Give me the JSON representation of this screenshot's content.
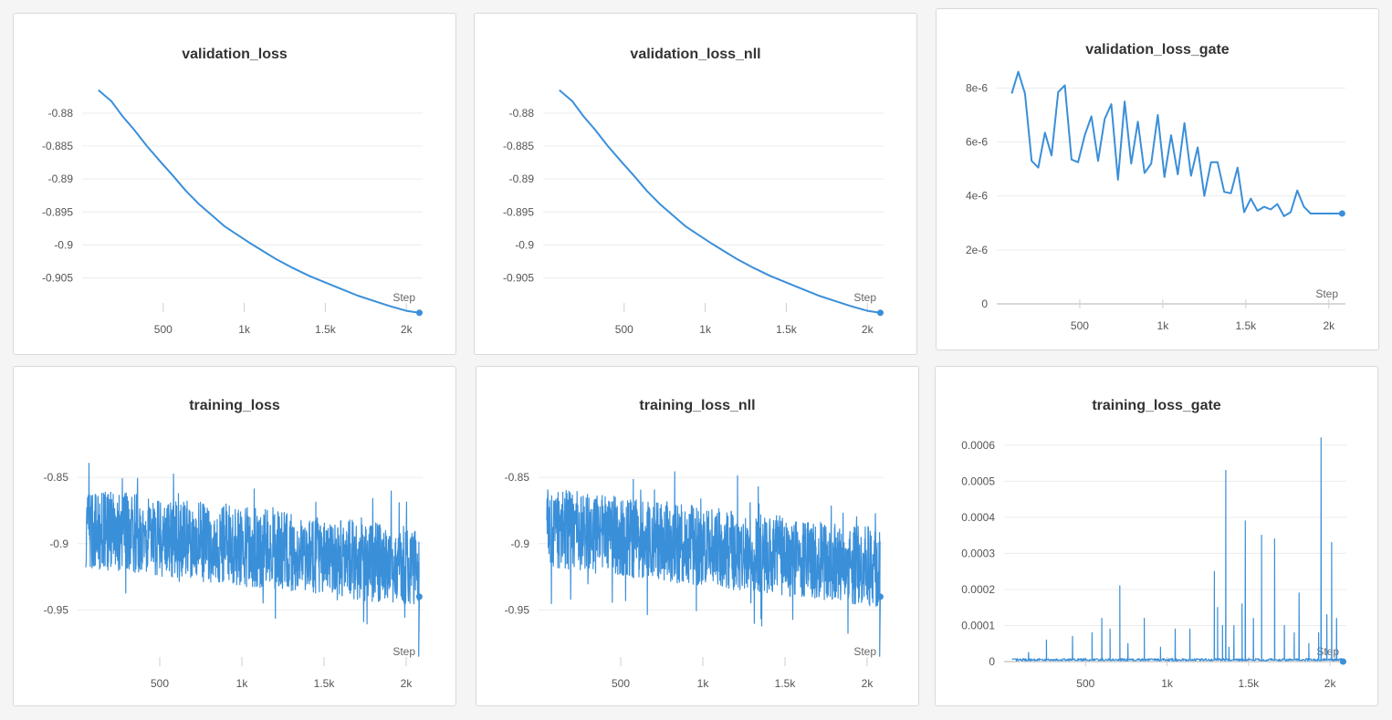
{
  "accent_color": "#3a8fd9",
  "x_axis_label": "Step",
  "charts": [
    {
      "title": "validation_loss",
      "chart_data": {
        "type": "line",
        "title": "validation_loss",
        "xlabel": "Step",
        "ylabel": "",
        "xlim": [
          0,
          2100
        ],
        "ylim": [
          -0.9095,
          -0.8735
        ],
        "x_ticks": [
          500,
          1000,
          1500,
          2000
        ],
        "x_tick_labels": [
          "500",
          "1k",
          "1.5k",
          "2k"
        ],
        "y_ticks": [
          -0.88,
          -0.885,
          -0.89,
          -0.895,
          -0.9,
          -0.905
        ],
        "y_tick_labels": [
          "-0.88",
          "-0.885",
          "-0.89",
          "-0.895",
          "-0.9",
          "-0.905"
        ],
        "grid": true,
        "series": [
          {
            "x": [
              100,
              180,
              250,
              320,
              400,
              480,
              560,
              640,
              720,
              800,
              880,
              960,
              1040,
              1120,
              1200,
              1300,
              1400,
              1500,
              1600,
              1700,
              1800,
              1900,
              2000,
              2080
            ],
            "y": [
              -0.8765,
              -0.8782,
              -0.8805,
              -0.8825,
              -0.885,
              -0.8873,
              -0.8895,
              -0.8918,
              -0.8938,
              -0.8955,
              -0.8972,
              -0.8985,
              -0.8998,
              -0.901,
              -0.9022,
              -0.9035,
              -0.9047,
              -0.9057,
              -0.9067,
              -0.9077,
              -0.9085,
              -0.9093,
              -0.91,
              -0.9103
            ]
          }
        ]
      }
    },
    {
      "title": "validation_loss_nll",
      "chart_data": {
        "type": "line",
        "title": "validation_loss_nll",
        "xlabel": "Step",
        "ylabel": "",
        "xlim": [
          0,
          2100
        ],
        "ylim": [
          -0.9095,
          -0.8735
        ],
        "x_ticks": [
          500,
          1000,
          1500,
          2000
        ],
        "x_tick_labels": [
          "500",
          "1k",
          "1.5k",
          "2k"
        ],
        "y_ticks": [
          -0.88,
          -0.885,
          -0.89,
          -0.895,
          -0.9,
          -0.905
        ],
        "y_tick_labels": [
          "-0.88",
          "-0.885",
          "-0.89",
          "-0.895",
          "-0.9",
          "-0.905"
        ],
        "grid": true,
        "series": [
          {
            "x": [
              100,
              180,
              250,
              320,
              400,
              480,
              560,
              640,
              720,
              800,
              880,
              960,
              1040,
              1120,
              1200,
              1300,
              1400,
              1500,
              1600,
              1700,
              1800,
              1900,
              2000,
              2080
            ],
            "y": [
              -0.8765,
              -0.8782,
              -0.8805,
              -0.8825,
              -0.885,
              -0.8873,
              -0.8895,
              -0.8918,
              -0.8938,
              -0.8955,
              -0.8972,
              -0.8985,
              -0.8998,
              -0.901,
              -0.9022,
              -0.9035,
              -0.9047,
              -0.9057,
              -0.9067,
              -0.9077,
              -0.9085,
              -0.9093,
              -0.91,
              -0.9103
            ]
          }
        ]
      }
    },
    {
      "title": "validation_loss_gate",
      "chart_data": {
        "type": "line",
        "title": "validation_loss_gate",
        "xlabel": "Step",
        "ylabel": "",
        "xlim": [
          0,
          2100
        ],
        "ylim": [
          0,
          9.2e-06
        ],
        "x_ticks": [
          500,
          1000,
          1500,
          2000
        ],
        "x_tick_labels": [
          "500",
          "1k",
          "1.5k",
          "2k"
        ],
        "y_ticks": [
          0,
          2e-06,
          4e-06,
          6e-06,
          8e-06
        ],
        "y_tick_labels": [
          "0",
          "2e-6",
          "4e-6",
          "6e-6",
          "8e-6"
        ],
        "grid": true,
        "series": [
          {
            "x": [
              90,
              130,
              170,
              210,
              250,
              290,
              330,
              370,
              410,
              450,
              490,
              530,
              570,
              610,
              650,
              690,
              730,
              770,
              810,
              850,
              890,
              930,
              970,
              1010,
              1050,
              1090,
              1130,
              1170,
              1210,
              1250,
              1290,
              1330,
              1370,
              1410,
              1450,
              1490,
              1530,
              1570,
              1610,
              1650,
              1690,
              1730,
              1770,
              1810,
              1850,
              1890,
              1930,
              1970,
              2010,
              2050,
              2080
            ],
            "y": [
              7.8e-06,
              8.6e-06,
              7.8e-06,
              5.3e-06,
              5.05e-06,
              6.35e-06,
              5.5e-06,
              7.85e-06,
              8.1e-06,
              5.35e-06,
              5.25e-06,
              6.25e-06,
              6.95e-06,
              5.3e-06,
              6.85e-06,
              7.4e-06,
              4.6e-06,
              7.5e-06,
              5.2e-06,
              6.75e-06,
              4.85e-06,
              5.2e-06,
              7e-06,
              4.7e-06,
              6.25e-06,
              4.8e-06,
              6.7e-06,
              4.75e-06,
              5.8e-06,
              4e-06,
              5.25e-06,
              5.25e-06,
              4.15e-06,
              4.1e-06,
              5.05e-06,
              3.4e-06,
              3.9e-06,
              3.45e-06,
              3.6e-06,
              3.5e-06,
              3.7e-06,
              3.25e-06,
              3.4e-06,
              4.2e-06,
              3.6e-06,
              3.35e-06,
              3.35e-06,
              3.35e-06,
              3.35e-06,
              3.35e-06,
              3.35e-06
            ]
          }
        ]
      }
    },
    {
      "title": "training_loss",
      "chart_data": {
        "type": "line",
        "title": "training_loss",
        "xlabel": "Step",
        "ylabel": "",
        "xlim": [
          0,
          2100
        ],
        "ylim": [
          -0.989,
          -0.812
        ],
        "x_ticks": [
          500,
          1000,
          1500,
          2000
        ],
        "x_tick_labels": [
          "500",
          "1k",
          "1.5k",
          "2k"
        ],
        "y_ticks": [
          -0.85,
          -0.9,
          -0.95
        ],
        "y_tick_labels": [
          "-0.85",
          "-0.9",
          "-0.95"
        ],
        "grid": true,
        "series": [
          {
            "x_start": 50,
            "x_end": 2080,
            "trend_start": -0.888,
            "trend_end": -0.918,
            "noise_amplitude": 0.03,
            "last_value": -0.94
          }
        ]
      }
    },
    {
      "title": "training_loss_nll",
      "chart_data": {
        "type": "line",
        "title": "training_loss_nll",
        "xlabel": "Step",
        "ylabel": "",
        "xlim": [
          0,
          2100
        ],
        "ylim": [
          -0.989,
          -0.812
        ],
        "x_ticks": [
          500,
          1000,
          1500,
          2000
        ],
        "x_tick_labels": [
          "500",
          "1k",
          "1.5k",
          "2k"
        ],
        "y_ticks": [
          -0.85,
          -0.9,
          -0.95
        ],
        "y_tick_labels": [
          "-0.85",
          "-0.9",
          "-0.95"
        ],
        "grid": true,
        "series": [
          {
            "x_start": 50,
            "x_end": 2080,
            "trend_start": -0.888,
            "trend_end": -0.918,
            "noise_amplitude": 0.03,
            "last_value": -0.94
          }
        ]
      }
    },
    {
      "title": "training_loss_gate",
      "chart_data": {
        "type": "line",
        "title": "training_loss_gate",
        "xlabel": "Step",
        "ylabel": "",
        "xlim": [
          0,
          2100
        ],
        "ylim": [
          0,
          0.00064
        ],
        "x_ticks": [
          500,
          1000,
          1500,
          2000
        ],
        "x_tick_labels": [
          "500",
          "1k",
          "1.5k",
          "2k"
        ],
        "y_ticks": [
          0,
          0.0001,
          0.0002,
          0.0003,
          0.0004,
          0.0005,
          0.0006
        ],
        "y_tick_labels": [
          "0",
          "0.0001",
          "0.0002",
          "0.0003",
          "0.0004",
          "0.0005",
          "0.0006"
        ],
        "grid": true,
        "series": [
          {
            "x_start": 50,
            "x_end": 2080,
            "baseline": 5e-06,
            "last_value": 0,
            "spikes": [
              [
                150,
                2.5e-05
              ],
              [
                260,
                6e-05
              ],
              [
                420,
                7e-05
              ],
              [
                540,
                8e-05
              ],
              [
                600,
                0.00012
              ],
              [
                650,
                9e-05
              ],
              [
                710,
                0.00021
              ],
              [
                760,
                5e-05
              ],
              [
                860,
                0.00012
              ],
              [
                960,
                4e-05
              ],
              [
                1050,
                9e-05
              ],
              [
                1140,
                9e-05
              ],
              [
                1290,
                0.00025
              ],
              [
                1310,
                0.00015
              ],
              [
                1340,
                0.0001
              ],
              [
                1360,
                0.00053
              ],
              [
                1380,
                4e-05
              ],
              [
                1410,
                0.0001
              ],
              [
                1460,
                0.00016
              ],
              [
                1480,
                0.00039
              ],
              [
                1530,
                0.00012
              ],
              [
                1580,
                0.00035
              ],
              [
                1660,
                0.00034
              ],
              [
                1720,
                0.0001
              ],
              [
                1780,
                8e-05
              ],
              [
                1810,
                0.00019
              ],
              [
                1870,
                5e-05
              ],
              [
                1930,
                8e-05
              ],
              [
                1945,
                0.00062
              ],
              [
                1980,
                0.00013
              ],
              [
                2010,
                0.00033
              ],
              [
                2040,
                0.00012
              ]
            ]
          }
        ]
      }
    }
  ]
}
